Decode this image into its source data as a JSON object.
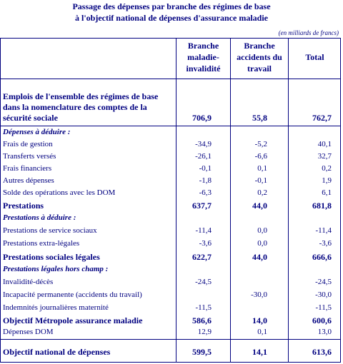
{
  "title": {
    "line1": "Passage des dépenses par branche des régimes de base",
    "line2": "à l'objectif national de dépenses d'assurance maladie"
  },
  "unit_note": "(en milliards de francs)",
  "columns": {
    "col1_l1": "Branche",
    "col1_l2": "maladie-",
    "col1_l3": "invalidité",
    "col2_l1": "Branche",
    "col2_l2": "accidents du",
    "col2_l3": "travail",
    "col3": "Total"
  },
  "emplois": {
    "label_l1": "Emplois de l'ensemble des régimes de base",
    "label_l2": "dans la nomenclature des comptes de la",
    "label_l3": "sécurité sociale",
    "v1": "706,9",
    "v2": "55,8",
    "v3": "762,7"
  },
  "rows": [
    {
      "label": "Dépenses à déduire :",
      "v1": "",
      "v2": "",
      "v3": ""
    },
    {
      "label": "Frais de gestion",
      "v1": "-34,9",
      "v2": "-5,2",
      "v3": "40,1"
    },
    {
      "label": "Transferts versés",
      "v1": "-26,1",
      "v2": "-6,6",
      "v3": "32,7"
    },
    {
      "label": "Frais financiers",
      "v1": "-0,1",
      "v2": "0,1",
      "v3": "0,2"
    },
    {
      "label": "Autres dépenses",
      "v1": "-1,8",
      "v2": "-0,1",
      "v3": "1,9"
    },
    {
      "label": "Solde des opérations avec les DOM",
      "v1": "-6,3",
      "v2": "0,2",
      "v3": "6,1"
    },
    {
      "label": "Prestations",
      "v1": "637,7",
      "v2": "44,0",
      "v3": "681,8"
    },
    {
      "label": "Prestations à déduire :",
      "v1": "",
      "v2": "",
      "v3": ""
    },
    {
      "label": "Prestations de service sociaux",
      "v1": "-11,4",
      "v2": "0,0",
      "v3": "-11,4"
    },
    {
      "label": "Prestations extra-légales",
      "v1": "-3,6",
      "v2": "0,0",
      "v3": "-3,6"
    },
    {
      "label": "Prestations sociales légales",
      "v1": "622,7",
      "v2": "44,0",
      "v3": "666,6"
    },
    {
      "label": "Prestations légales hors champ :",
      "v1": "",
      "v2": "",
      "v3": ""
    },
    {
      "label": "Invalidité-décès",
      "v1": "-24,5",
      "v2": "",
      "v3": "-24,5"
    },
    {
      "label": "Incapacité permanente (accidents du travail)",
      "v1": "",
      "v2": "-30,0",
      "v3": "-30,0"
    },
    {
      "label": "Indemnités journalières maternité",
      "v1": "-11,5",
      "v2": "",
      "v3": "-11,5"
    },
    {
      "label": "Objectif Métropole assurance maladie",
      "v1": "586,6",
      "v2": "14,0",
      "v3": "600,6"
    },
    {
      "label": "Dépenses DOM",
      "v1": "12,9",
      "v2": "0,1",
      "v3": "13,0"
    }
  ],
  "final": {
    "label": "Objectif national de dépenses",
    "v1": "599,5",
    "v2": "14,1",
    "v3": "613,6"
  }
}
